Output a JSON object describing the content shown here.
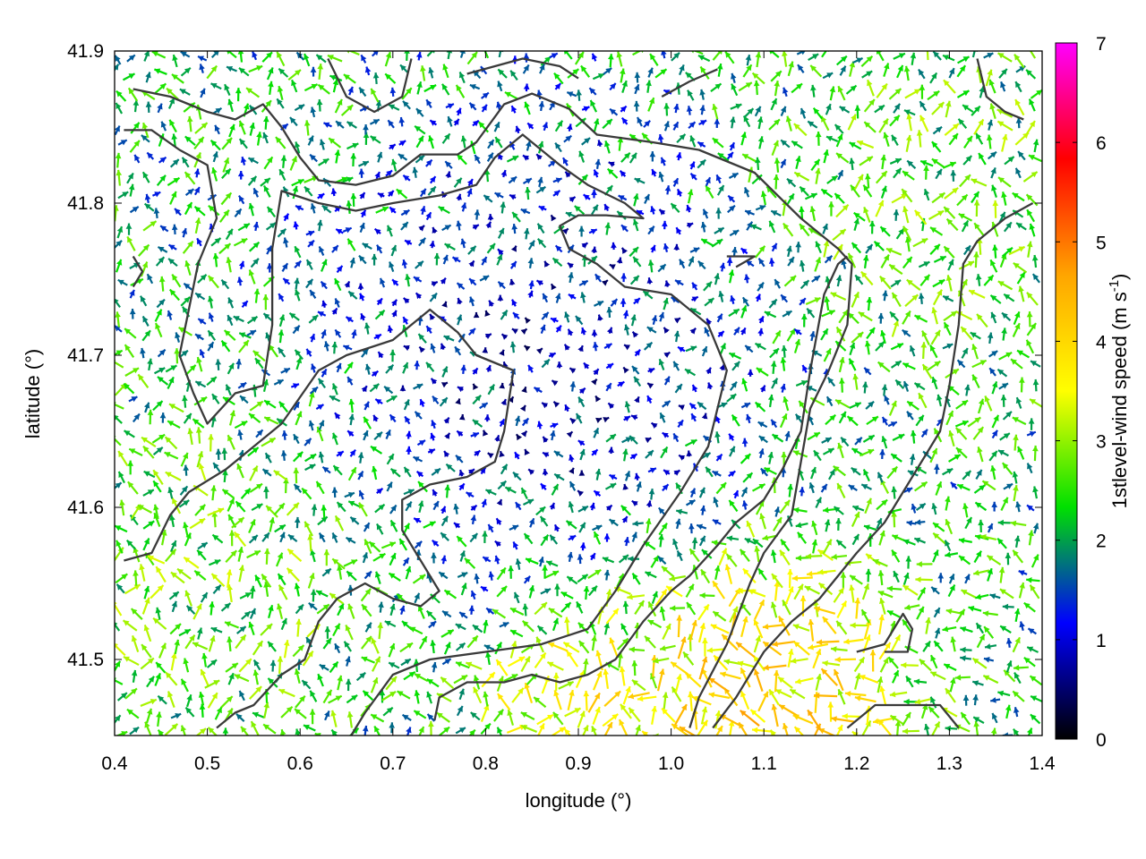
{
  "chart_data": {
    "type": "vector-field",
    "xlabel": "longitude (°)",
    "ylabel": "latitude (°)",
    "colorbar_label_main": "1stlevel-wind speed (m s",
    "colorbar_label_sup": "-1",
    "colorbar_label_end": ")",
    "xlim": [
      0.4,
      1.4
    ],
    "ylim": [
      41.45,
      41.9
    ],
    "xticks": [
      "0.4",
      "0.5",
      "0.6",
      "0.7",
      "0.8",
      "0.9",
      "1.0",
      "1.1",
      "1.2",
      "1.3",
      "1.4"
    ],
    "yticks": [
      "41.5",
      "41.6",
      "41.7",
      "41.8",
      "41.9"
    ],
    "xtick_values": [
      0.4,
      0.5,
      0.6,
      0.7,
      0.8,
      0.9,
      1.0,
      1.1,
      1.2,
      1.3,
      1.4
    ],
    "ytick_values": [
      41.5,
      41.6,
      41.7,
      41.8,
      41.9
    ],
    "colorbar": {
      "range": [
        0,
        7
      ],
      "ticks": [
        "0",
        "1",
        "2",
        "3",
        "4",
        "5",
        "6",
        "7"
      ],
      "tick_values": [
        0,
        1,
        2,
        3,
        4,
        5,
        6,
        7
      ],
      "colors": [
        "#000000",
        "#0000ff",
        "#00e000",
        "#ffff00",
        "#ffa500",
        "#ff0000",
        "#ff00ff"
      ]
    },
    "grid": false,
    "vector_field": {
      "lon_start": 0.405,
      "lon_step": 0.0147,
      "lat_start": 41.452,
      "lat_step": 0.0114,
      "speed_zones": [
        {
          "lon": 1.09,
          "lat": 41.47,
          "speed": 4.6,
          "radius": 0.13
        },
        {
          "lon": 0.88,
          "lat": 41.47,
          "speed": 3.9,
          "radius": 0.07
        },
        {
          "lon": 0.86,
          "lat": 41.7,
          "speed": 0.8,
          "radius": 0.18
        },
        {
          "lon": 0.5,
          "lat": 41.55,
          "speed": 2.8,
          "radius": 0.15
        },
        {
          "lon": 1.3,
          "lat": 41.8,
          "speed": 2.7,
          "radius": 0.15
        }
      ],
      "base_speed": 2.1
    },
    "contours": [
      [
        [
          0.42,
          41.875
        ],
        [
          0.46,
          41.87
        ],
        [
          0.5,
          41.86
        ],
        [
          0.53,
          41.855
        ],
        [
          0.56,
          41.865
        ],
        [
          0.58,
          41.85
        ],
        [
          0.6,
          41.83
        ],
        [
          0.62,
          41.815
        ],
        [
          0.66,
          41.812
        ],
        [
          0.7,
          41.818
        ],
        [
          0.73,
          41.832
        ],
        [
          0.77,
          41.832
        ],
        [
          0.79,
          41.84
        ],
        [
          0.82,
          41.865
        ],
        [
          0.85,
          41.872
        ],
        [
          0.89,
          41.862
        ],
        [
          0.92,
          41.845
        ],
        [
          0.98,
          41.84
        ],
        [
          1.03,
          41.835
        ],
        [
          1.09,
          41.82
        ],
        [
          1.14,
          41.79
        ],
        [
          1.18,
          41.77
        ],
        [
          1.195,
          41.76
        ],
        [
          1.19,
          41.72
        ],
        [
          1.17,
          41.69
        ],
        [
          1.15,
          41.665
        ],
        [
          1.14,
          41.63
        ],
        [
          1.13,
          41.595
        ],
        [
          1.1,
          41.57
        ],
        [
          1.085,
          41.55
        ],
        [
          1.06,
          41.51
        ],
        [
          1.03,
          41.475
        ],
        [
          1.02,
          41.455
        ]
      ],
      [
        [
          0.41,
          41.848
        ],
        [
          0.44,
          41.848
        ],
        [
          0.47,
          41.835
        ],
        [
          0.5,
          41.825
        ],
        [
          0.51,
          41.79
        ],
        [
          0.49,
          41.76
        ],
        [
          0.48,
          41.73
        ],
        [
          0.47,
          41.7
        ],
        [
          0.485,
          41.675
        ],
        [
          0.5,
          41.655
        ],
        [
          0.53,
          41.675
        ],
        [
          0.56,
          41.68
        ],
        [
          0.57,
          41.72
        ],
        [
          0.57,
          41.77
        ],
        [
          0.58,
          41.808
        ],
        [
          0.62,
          41.8
        ],
        [
          0.66,
          41.795
        ],
        [
          0.7,
          41.8
        ],
        [
          0.75,
          41.805
        ],
        [
          0.79,
          41.812
        ],
        [
          0.81,
          41.83
        ],
        [
          0.84,
          41.845
        ],
        [
          0.88,
          41.825
        ],
        [
          0.91,
          41.812
        ],
        [
          0.95,
          41.8
        ],
        [
          0.97,
          41.79
        ],
        [
          0.93,
          41.792
        ],
        [
          0.9,
          41.792
        ],
        [
          0.88,
          41.785
        ],
        [
          0.89,
          41.77
        ],
        [
          0.92,
          41.76
        ],
        [
          0.95,
          41.745
        ],
        [
          1.0,
          41.74
        ],
        [
          1.04,
          41.72
        ],
        [
          1.06,
          41.69
        ],
        [
          1.04,
          41.64
        ],
        [
          1.01,
          41.61
        ],
        [
          0.97,
          41.575
        ],
        [
          0.94,
          41.545
        ],
        [
          0.91,
          41.52
        ],
        [
          0.86,
          41.51
        ],
        [
          0.8,
          41.505
        ],
        [
          0.74,
          41.5
        ],
        [
          0.7,
          41.49
        ],
        [
          0.67,
          41.465
        ],
        [
          0.655,
          41.45
        ]
      ],
      [
        [
          0.41,
          41.565
        ],
        [
          0.44,
          41.57
        ],
        [
          0.46,
          41.595
        ],
        [
          0.48,
          41.61
        ],
        [
          0.52,
          41.625
        ],
        [
          0.55,
          41.64
        ],
        [
          0.58,
          41.655
        ],
        [
          0.62,
          41.69
        ],
        [
          0.65,
          41.7
        ],
        [
          0.7,
          41.71
        ],
        [
          0.74,
          41.73
        ],
        [
          0.77,
          41.715
        ],
        [
          0.79,
          41.7
        ],
        [
          0.83,
          41.69
        ],
        [
          0.82,
          41.65
        ],
        [
          0.81,
          41.63
        ],
        [
          0.78,
          41.62
        ],
        [
          0.74,
          41.615
        ],
        [
          0.71,
          41.605
        ],
        [
          0.71,
          41.585
        ],
        [
          0.73,
          41.565
        ],
        [
          0.75,
          41.545
        ],
        [
          0.73,
          41.535
        ],
        [
          0.7,
          41.54
        ],
        [
          0.67,
          41.55
        ],
        [
          0.64,
          41.54
        ],
        [
          0.62,
          41.525
        ],
        [
          0.605,
          41.5
        ],
        [
          0.58,
          41.49
        ],
        [
          0.55,
          41.47
        ],
        [
          0.53,
          41.465
        ],
        [
          0.51,
          41.455
        ]
      ],
      [
        [
          0.745,
          41.46
        ],
        [
          0.75,
          41.475
        ],
        [
          0.78,
          41.485
        ],
        [
          0.82,
          41.485
        ],
        [
          0.85,
          41.49
        ],
        [
          0.88,
          41.485
        ],
        [
          0.91,
          41.49
        ],
        [
          0.94,
          41.5
        ],
        [
          0.97,
          41.525
        ],
        [
          1.0,
          41.545
        ],
        [
          1.02,
          41.555
        ],
        [
          1.05,
          41.575
        ],
        [
          1.07,
          41.59
        ],
        [
          1.1,
          41.605
        ],
        [
          1.12,
          41.625
        ],
        [
          1.14,
          41.65
        ],
        [
          1.15,
          41.69
        ],
        [
          1.165,
          41.74
        ],
        [
          1.18,
          41.76
        ],
        [
          1.19,
          41.765
        ]
      ],
      [
        [
          1.045,
          41.455
        ],
        [
          1.07,
          41.475
        ],
        [
          1.1,
          41.505
        ],
        [
          1.13,
          41.525
        ],
        [
          1.16,
          41.54
        ],
        [
          1.18,
          41.555
        ],
        [
          1.2,
          41.57
        ],
        [
          1.23,
          41.59
        ],
        [
          1.25,
          41.61
        ],
        [
          1.27,
          41.63
        ],
        [
          1.29,
          41.65
        ],
        [
          1.3,
          41.68
        ],
        [
          1.31,
          41.72
        ],
        [
          1.315,
          41.76
        ],
        [
          1.33,
          41.775
        ],
        [
          1.36,
          41.79
        ],
        [
          1.39,
          41.8
        ]
      ],
      [
        [
          1.19,
          41.455
        ],
        [
          1.22,
          41.47
        ],
        [
          1.26,
          41.47
        ],
        [
          1.29,
          41.47
        ],
        [
          1.31,
          41.455
        ]
      ],
      [
        [
          1.2,
          41.505
        ],
        [
          1.23,
          41.51
        ],
        [
          1.25,
          41.53
        ],
        [
          1.26,
          41.52
        ],
        [
          1.255,
          41.505
        ],
        [
          1.23,
          41.505
        ]
      ],
      [
        [
          0.63,
          41.895
        ],
        [
          0.65,
          41.87
        ],
        [
          0.68,
          41.86
        ],
        [
          0.71,
          41.87
        ],
        [
          0.72,
          41.895
        ]
      ],
      [
        [
          0.78,
          41.885
        ],
        [
          0.84,
          41.895
        ],
        [
          0.88,
          41.89
        ],
        [
          0.9,
          41.882
        ]
      ],
      [
        [
          0.99,
          41.87
        ],
        [
          1.02,
          41.88
        ],
        [
          1.05,
          41.888
        ]
      ],
      [
        [
          1.33,
          41.895
        ],
        [
          1.34,
          41.87
        ],
        [
          1.36,
          41.86
        ],
        [
          1.38,
          41.855
        ]
      ],
      [
        [
          1.06,
          41.765
        ],
        [
          1.09,
          41.765
        ],
        [
          1.07,
          41.758
        ]
      ],
      [
        [
          0.42,
          41.765
        ],
        [
          0.43,
          41.755
        ],
        [
          0.42,
          41.745
        ]
      ]
    ]
  }
}
